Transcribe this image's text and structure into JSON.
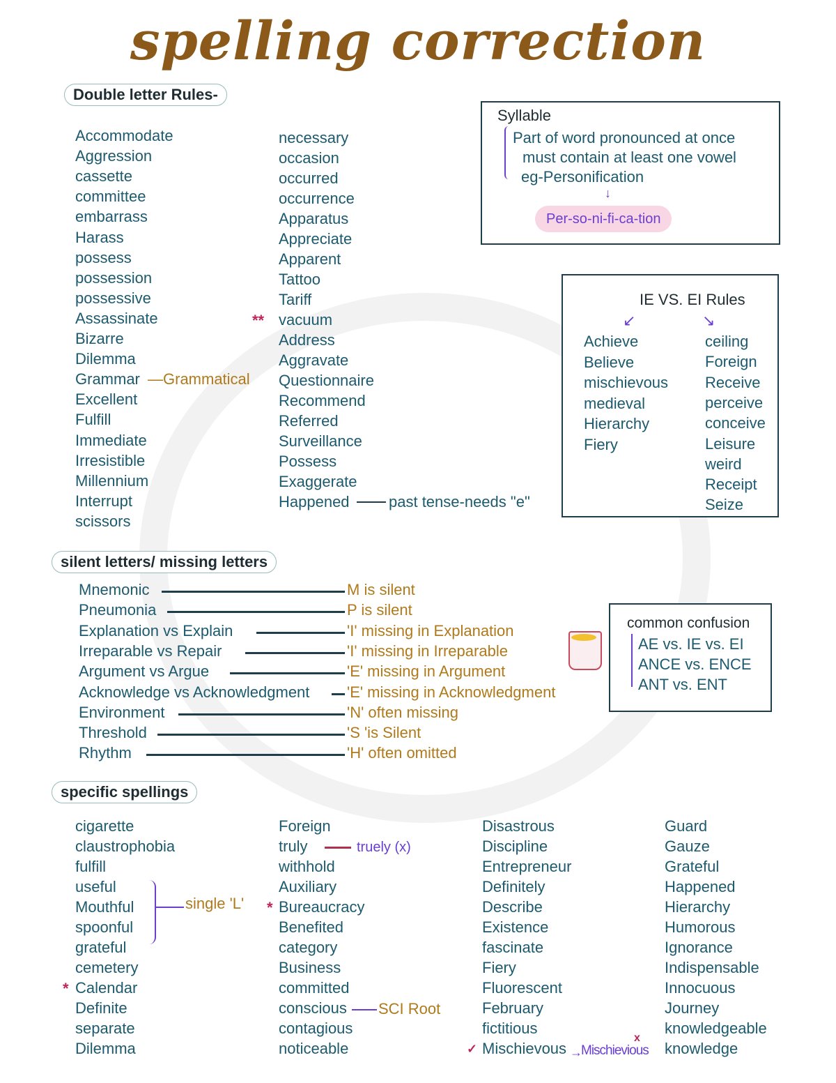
{
  "title": "spelling correction",
  "colors": {
    "teal": "#1d5a6e",
    "brown": "#b07a1c",
    "purple": "#6a3fd0",
    "title": "#8b5a1a",
    "highlight": "#f6cfe0"
  },
  "double_letter": {
    "heading": "Double letter Rules-",
    "col1": [
      "Accommodate",
      "Aggression",
      "cassette",
      "committee",
      "embarrass",
      "Harass",
      "possess",
      "possession",
      "possessive",
      "Assassinate",
      "Bizarre",
      "Dilemma",
      "Grammar",
      "Excellent",
      "Fulfill",
      "Immediate",
      "Irresistible",
      "Millennium",
      "Interrupt",
      "scissors"
    ],
    "grammar_note": "—Grammatical",
    "col2": [
      "necessary",
      "occasion",
      "occurred",
      "occurrence",
      "Apparatus",
      "Appreciate",
      "Apparent",
      "Tattoo",
      "Tariff",
      "vacuum",
      "Address",
      "Aggravate",
      "Questionnaire",
      "Recommend",
      "Referred",
      "Surveillance",
      "Possess",
      "Exaggerate",
      "Happened"
    ],
    "vacuum_mark": "**",
    "happened_note": "past tense-needs \"e\""
  },
  "syllable": {
    "heading": "Syllable",
    "points": [
      "Part of word pronounced at once",
      "must contain at least one vowel",
      "eg-Personification"
    ],
    "split": "Per-so-ni-fi-ca-tion"
  },
  "ie_ei": {
    "heading": "IE VS. EI Rules",
    "ie": [
      "Achieve",
      "Believe",
      "mischievous",
      "medieval",
      "Hierarchy",
      "Fiery"
    ],
    "ei": [
      "ceiling",
      "Foreign",
      "Receive",
      "perceive",
      "conceive",
      "Leisure",
      "weird",
      "Receipt",
      "Seize"
    ]
  },
  "silent": {
    "heading": "silent letters/ missing letters",
    "rows": [
      {
        "word": "Mnemonic",
        "note": "M is silent"
      },
      {
        "word": "Pneumonia",
        "note": "P is silent"
      },
      {
        "word": "Explanation vs Explain",
        "note": "'I' missing in Explanation"
      },
      {
        "word": "Irreparable vs Repair",
        "note": "'I' missing in Irreparable"
      },
      {
        "word": "Argument vs Argue",
        "note": "'E' missing in Argument"
      },
      {
        "word": "Acknowledge vs Acknowledgment",
        "note": "'E' missing in Acknowledgment"
      },
      {
        "word": "Environment",
        "note": "'N' often missing"
      },
      {
        "word": "Threshold",
        "note": "'S 'is Silent"
      },
      {
        "word": "Rhythm",
        "note": "'H' often omitted"
      }
    ]
  },
  "confusion": {
    "heading": "common confusion",
    "items": [
      "AE vs. IE vs. EI",
      "ANCE vs. ENCE",
      "ANT vs. ENT"
    ],
    "icon": "mug-icon"
  },
  "specific": {
    "heading": "specific spellings",
    "col1": [
      "cigarette",
      "claustrophobia",
      "fulfill",
      "useful",
      "Mouthful",
      "spoonful",
      "grateful",
      "cemetery",
      "Calendar",
      "Definite",
      "separate",
      "Dilemma"
    ],
    "col2": [
      "Foreign",
      "truly",
      "withhold",
      "Auxiliary",
      "Bureaucracy",
      "Benefited",
      "category",
      "Business",
      "committed",
      "conscious",
      "contagious",
      "noticeable"
    ],
    "col3": [
      "Disastrous",
      "Discipline",
      "Entrepreneur",
      "Definitely",
      "Describe",
      "Existence",
      "fascinate",
      "Fiery",
      "Fluorescent",
      "February",
      "fictitious",
      "Mischievous"
    ],
    "col4": [
      "Guard",
      "Gauze",
      "Grateful",
      "Happened",
      "Hierarchy",
      "Humorous",
      "Ignorance",
      "Indispensable",
      "Innocuous",
      "Journey",
      "knowledgeable",
      "knowledge"
    ],
    "single_l_note": "single 'L'",
    "truly_wrong": "truely (x)",
    "sci_note": "SCI Root",
    "mischievous_wrong": "Mischievious",
    "wrong_mark": "x",
    "check_mark": "✓",
    "star": "*"
  }
}
